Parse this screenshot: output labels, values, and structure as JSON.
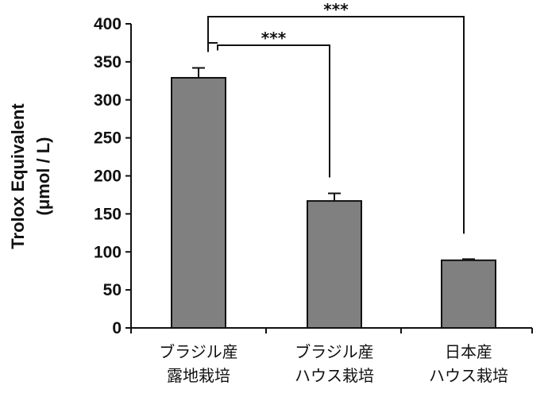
{
  "chart_data": {
    "type": "bar",
    "title": "",
    "xlabel": "",
    "ylabel_lines": [
      "Trolox Equivalent",
      "(μmol / L)"
    ],
    "categories": [
      [
        "ブラジル産",
        "露地栽培"
      ],
      [
        "ブラジル産",
        "ハウス栽培"
      ],
      [
        "日本産",
        "ハウス栽培"
      ]
    ],
    "values": [
      329,
      167,
      89
    ],
    "errors": [
      13,
      10,
      1.5
    ],
    "ylim": [
      0,
      400
    ],
    "yticks": [
      0,
      50,
      100,
      150,
      200,
      250,
      300,
      350,
      400
    ],
    "grid": false,
    "colors": {
      "bar": "#808080",
      "bar_edge": "#111111",
      "axis": "#111111"
    },
    "significance": [
      {
        "from": 0,
        "to": 1,
        "label": "***"
      },
      {
        "from": 0,
        "to": 2,
        "label": "***"
      }
    ]
  }
}
